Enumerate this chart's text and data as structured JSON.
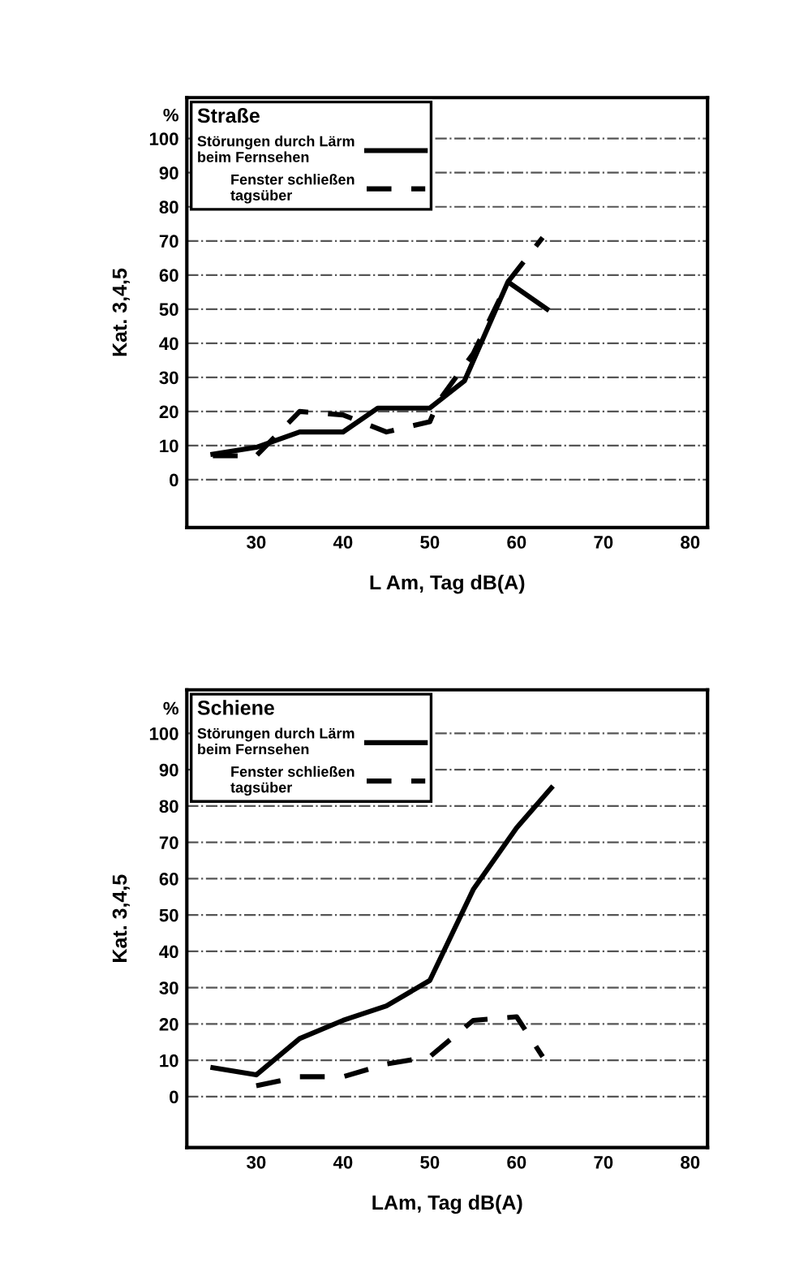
{
  "chart_data": [
    {
      "type": "line",
      "legend_title": "Straße",
      "xlabel": "L Am, Tag dB(A)",
      "ylabel": "Kat. 3,4,5",
      "xlim": [
        22,
        82
      ],
      "xticks": [
        30,
        40,
        50,
        60,
        70,
        80
      ],
      "ylim": [
        -14,
        112
      ],
      "yticks": [
        0,
        10,
        20,
        30,
        40,
        50,
        60,
        70,
        80,
        90,
        100,
        {
          "value": 107,
          "label": "%"
        }
      ],
      "grid": "y",
      "legend": "top left",
      "marker": "none",
      "series": [
        {
          "name": "Störungen durch Lärm\nbeim Fernsehen",
          "color": "#000000",
          "line_style": "solid",
          "x": [
            25,
            30,
            35,
            40,
            44,
            50,
            54,
            59,
            63.5
          ],
          "values": [
            7.5,
            9.5,
            14,
            14,
            21,
            21,
            29,
            58,
            50
          ]
        },
        {
          "name": "Fenster schließen\ntagsüber",
          "color": "#000000",
          "line_style": "dashed",
          "x": [
            25,
            30,
            35,
            40,
            45,
            50,
            51,
            55,
            59,
            63
          ],
          "values": [
            7,
            7,
            20,
            19,
            14,
            17,
            23,
            37,
            58,
            71
          ]
        }
      ]
    },
    {
      "type": "line",
      "legend_title": "Schiene",
      "xlabel": "LAm, Tag dB(A)",
      "ylabel": "Kat. 3,4,5",
      "xlim": [
        22,
        82
      ],
      "xticks": [
        30,
        40,
        50,
        60,
        70,
        80
      ],
      "ylim": [
        -14,
        112
      ],
      "yticks": [
        0,
        10,
        20,
        30,
        40,
        50,
        60,
        70,
        80,
        90,
        100,
        {
          "value": 107,
          "label": "%"
        }
      ],
      "grid": "y",
      "legend": "top left",
      "marker": "none",
      "series": [
        {
          "name": "Störungen durch Lärm\nbeim Fernsehen",
          "color": "#000000",
          "line_style": "solid",
          "x": [
            25,
            30,
            35,
            40,
            45,
            50,
            55,
            60,
            64
          ],
          "values": [
            8,
            6,
            16,
            21,
            25,
            32,
            57,
            74,
            85
          ]
        },
        {
          "name": "Fenster schließen\ntagsüber",
          "color": "#000000",
          "line_style": "dashed",
          "x": [
            30,
            35,
            40,
            45,
            50,
            55,
            60,
            63
          ],
          "values": [
            3,
            5.5,
            5.5,
            9,
            11,
            21,
            22,
            11
          ]
        }
      ]
    }
  ]
}
